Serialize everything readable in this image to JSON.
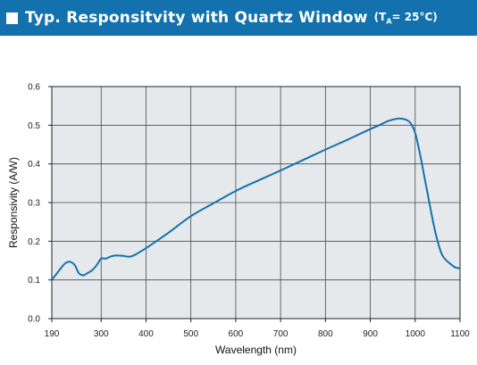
{
  "header": {
    "title": "Typ. Responsitvity with Quartz Window",
    "condition_open": "(T",
    "condition_sub": "A",
    "condition_rest": "= 25°C)",
    "bar_color": "#1372ad",
    "icon": "square-bullet-icon"
  },
  "chart_data": {
    "type": "line",
    "title": "Typ. Responsitvity with Quartz Window",
    "xlabel": "Wavelength (nm)",
    "ylabel": "Responsivity (A/W)",
    "xlim": [
      190,
      1100
    ],
    "ylim": [
      0,
      0.6
    ],
    "xticks": [
      "190",
      "300",
      "400",
      "500",
      "600",
      "700",
      "800",
      "900",
      "1000",
      "1100"
    ],
    "yticks": [
      "0.0",
      "0.1",
      "0.2",
      "0.3",
      "0.4",
      "0.5",
      "0.6"
    ],
    "xtick_values": [
      190,
      300,
      400,
      500,
      600,
      700,
      800,
      900,
      1000,
      1100
    ],
    "ytick_values": [
      0,
      0.1,
      0.2,
      0.3,
      0.4,
      0.5,
      0.6
    ],
    "grid": true,
    "plot_background": "#e5e9ec",
    "line_color": "#1372ad",
    "series": [
      {
        "x": [
          190,
          200,
          210,
          220,
          230,
          240,
          245,
          250,
          260,
          270,
          280,
          290,
          300,
          310,
          320,
          330,
          340,
          350,
          360,
          370,
          380,
          390,
          400,
          450,
          500,
          550,
          600,
          650,
          700,
          750,
          800,
          850,
          900,
          920,
          940,
          960,
          970,
          980,
          990,
          1000,
          1010,
          1020,
          1030,
          1040,
          1050,
          1060,
          1070,
          1080,
          1090,
          1100
        ],
        "y": [
          0.1,
          0.115,
          0.13,
          0.143,
          0.147,
          0.14,
          0.13,
          0.118,
          0.112,
          0.118,
          0.125,
          0.138,
          0.155,
          0.155,
          0.16,
          0.163,
          0.163,
          0.162,
          0.16,
          0.162,
          0.168,
          0.175,
          0.182,
          0.222,
          0.265,
          0.298,
          0.33,
          0.357,
          0.383,
          0.41,
          0.437,
          0.463,
          0.49,
          0.5,
          0.511,
          0.517,
          0.517,
          0.514,
          0.505,
          0.48,
          0.43,
          0.37,
          0.31,
          0.25,
          0.2,
          0.165,
          0.15,
          0.14,
          0.132,
          0.13
        ]
      }
    ]
  }
}
